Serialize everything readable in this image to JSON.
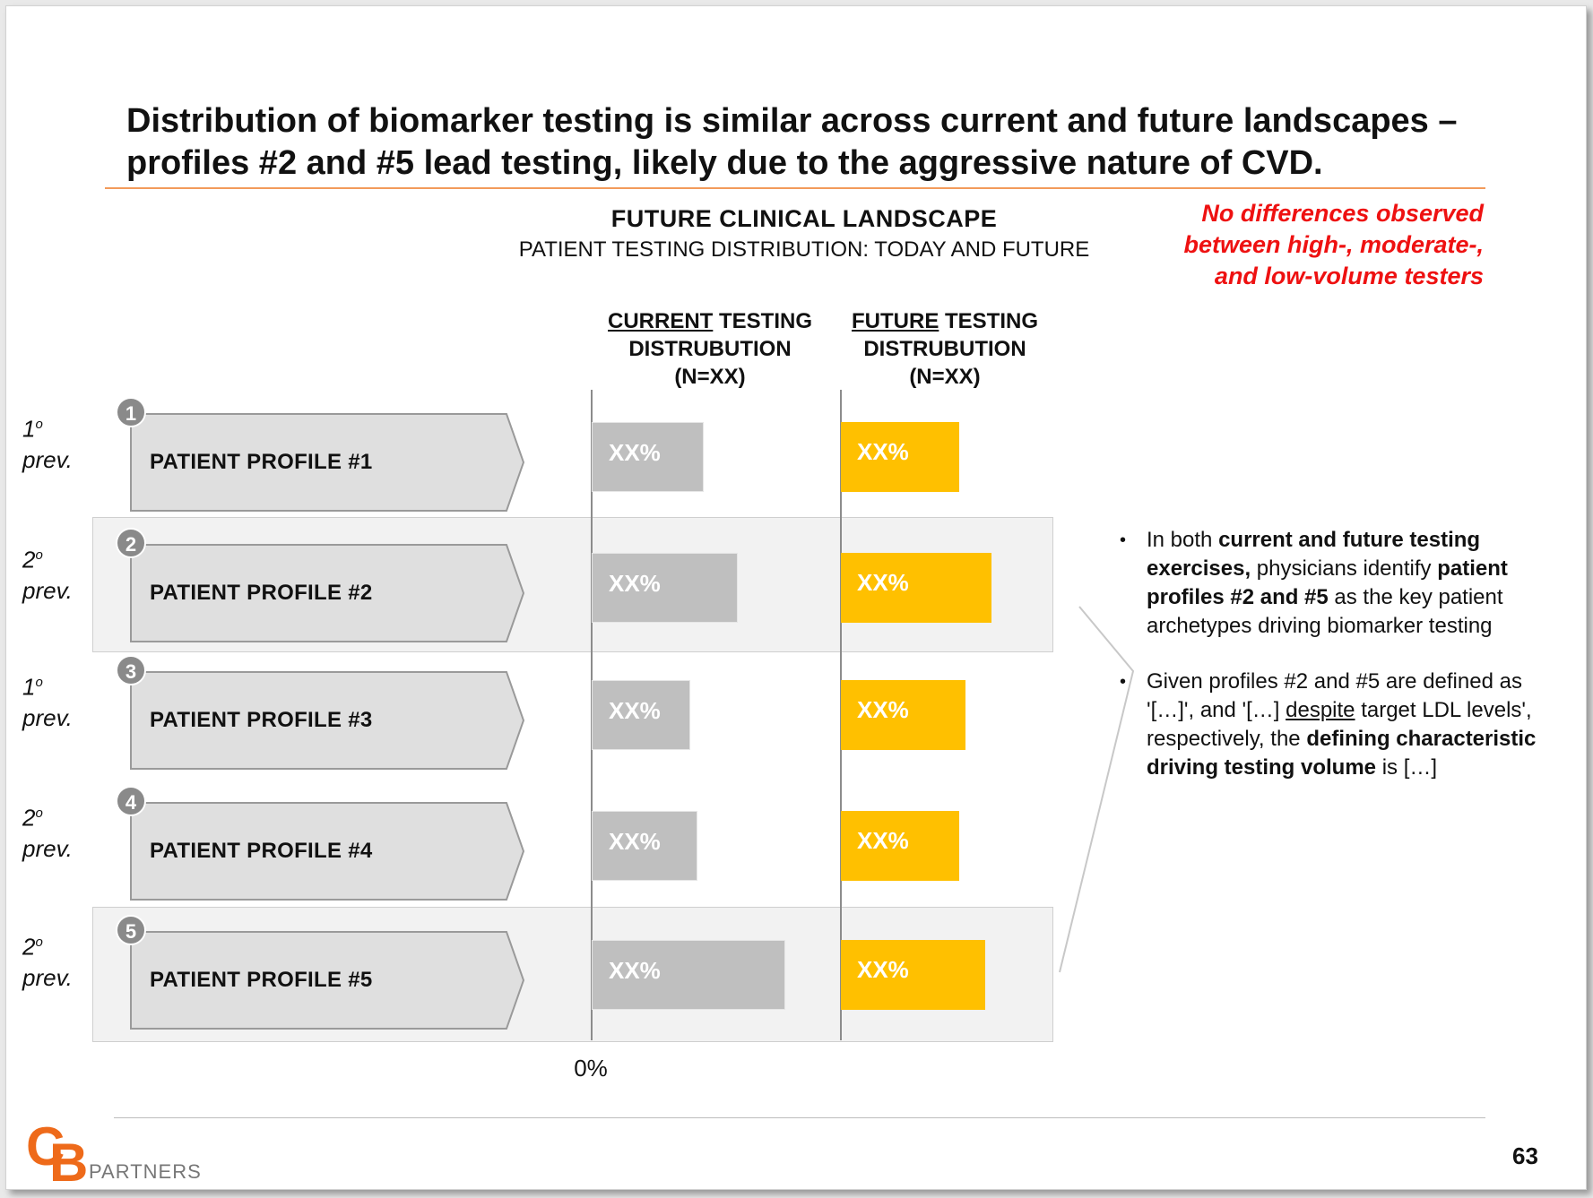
{
  "title": "Distribution of biomarker testing is similar across current and future landscapes – profiles #2 and #5 lead testing, likely due to the aggressive nature of CVD.",
  "section": {
    "heading": "FUTURE CLINICAL  LANDSCAPE",
    "subheading": "PATIENT TESTING DISTRIBUTION: TODAY AND FUTURE"
  },
  "callout": {
    "line1": "No differences observed",
    "line2": "between high-, moderate-,",
    "line3": "and low-volume testers",
    "color": "#ee1111"
  },
  "columns": {
    "current": {
      "underlined": "CURRENT",
      "rest": " TESTING",
      "line2": "DISTRUBUTION",
      "line3": "(N=XX)"
    },
    "future": {
      "underlined": "FUTURE",
      "rest": " TESTING",
      "line2": "DISTRUBUTION",
      "line3": "(N=XX)"
    }
  },
  "axis_label": "0%",
  "chart_data": {
    "type": "bar",
    "categories": [
      "PATIENT PROFILE #1",
      "PATIENT PROFILE #2",
      "PATIENT PROFILE #3",
      "PATIENT PROFILE #4",
      "PATIENT PROFILE #5"
    ],
    "series": [
      {
        "name": "CURRENT TESTING DISTRUBUTION (N=XX)",
        "values": [
          0.52,
          0.68,
          0.46,
          0.49,
          0.9
        ],
        "labels": [
          "XX%",
          "XX%",
          "XX%",
          "XX%",
          "XX%"
        ],
        "color": "#bfbfbf"
      },
      {
        "name": "FUTURE TESTING DISTRUBUTION (N=XX)",
        "values": [
          0.55,
          0.7,
          0.58,
          0.55,
          0.67
        ],
        "labels": [
          "XX%",
          "XX%",
          "XX%",
          "XX%",
          "XX%"
        ],
        "color": "#ffc000"
      }
    ],
    "xlim": [
      0,
      1
    ]
  },
  "rows": [
    {
      "number": "1",
      "prev_num": "1",
      "prev_deg": "o",
      "prev_word": "prev.",
      "label": "PATIENT PROFILE #1",
      "highlight": false
    },
    {
      "number": "2",
      "prev_num": "2",
      "prev_deg": "o",
      "prev_word": "prev.",
      "label": "PATIENT PROFILE #2",
      "highlight": true
    },
    {
      "number": "3",
      "prev_num": "1",
      "prev_deg": "o",
      "prev_word": "prev.",
      "label": "PATIENT PROFILE #3",
      "highlight": false
    },
    {
      "number": "4",
      "prev_num": "2",
      "prev_deg": "o",
      "prev_word": "prev.",
      "label": "PATIENT PROFILE #4",
      "highlight": false
    },
    {
      "number": "5",
      "prev_num": "2",
      "prev_deg": "o",
      "prev_word": "prev.",
      "label": "PATIENT PROFILE #5",
      "highlight": true
    }
  ],
  "bullets": [
    {
      "t1": "In both ",
      "b1": "current and future testing exercises,",
      "t2": " physicians identify ",
      "b2": "patient profiles #2 and #5",
      "t3": " as the key patient archetypes driving biomarker testing"
    },
    {
      "t1": "Given profiles #2 and #5 are defined as '[…]', and '[…] ",
      "u1": "despite",
      "t2": " target LDL levels', respectively, the ",
      "b1": "defining characteristic driving testing volume",
      "t3": " is […]"
    }
  ],
  "footer": {
    "logo_c": "C",
    "logo_b": "B",
    "logo_text": "PARTNERS",
    "page_number": "63",
    "logo_color": "#ee6a1a"
  },
  "colors": {
    "current_bar": "#bfbfbf",
    "future_bar": "#ffc000",
    "rule": "#f39b5b"
  }
}
